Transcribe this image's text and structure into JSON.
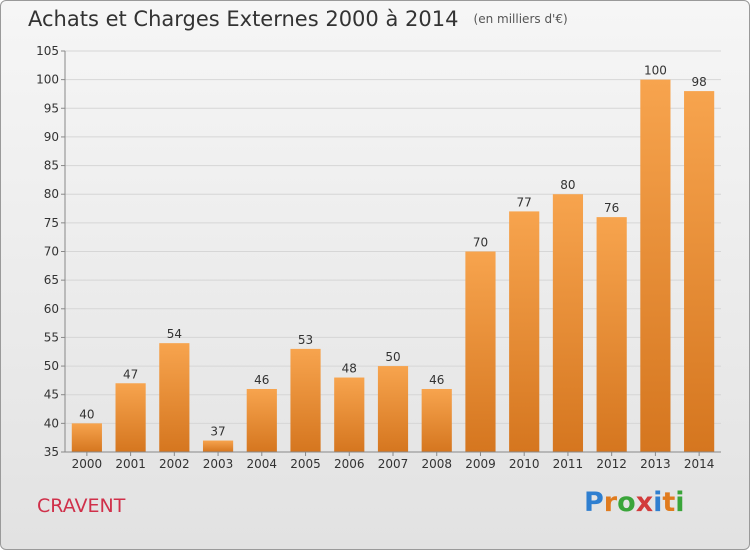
{
  "header": {
    "title": "Achats et Charges Externes 2000 à 2014",
    "unit": "(en milliers d'€)"
  },
  "footer": {
    "place": "CRAVENT",
    "logo_letters": [
      "P",
      "r",
      "o",
      "x",
      "i",
      "t",
      "i"
    ],
    "logo_colors": [
      "#2f7fd0",
      "#e07b1e",
      "#3aa53a",
      "#d23b3b",
      "#2f7fd0",
      "#e07b1e",
      "#3aa53a"
    ]
  },
  "colors": {
    "bar_light": "#f7a44e",
    "bar_dark": "#d5761f",
    "gridline": "#d6d6d6",
    "axis": "#888888"
  },
  "chart_data": {
    "type": "bar",
    "categories": [
      "2000",
      "2001",
      "2002",
      "2003",
      "2004",
      "2005",
      "2006",
      "2007",
      "2008",
      "2009",
      "2010",
      "2011",
      "2012",
      "2013",
      "2014"
    ],
    "values": [
      40,
      47,
      54,
      37,
      46,
      53,
      48,
      50,
      46,
      70,
      77,
      80,
      76,
      100,
      98
    ],
    "value_labels": [
      "40",
      "47",
      "54",
      "37",
      "46",
      "53",
      "48",
      "50",
      "46",
      "70",
      "77",
      "80",
      "76",
      "100",
      "98"
    ],
    "ylim": [
      35,
      105
    ],
    "yticks": [
      35,
      40,
      45,
      50,
      55,
      60,
      65,
      70,
      75,
      80,
      85,
      90,
      95,
      100,
      105
    ],
    "grid": true,
    "legend": "none"
  }
}
